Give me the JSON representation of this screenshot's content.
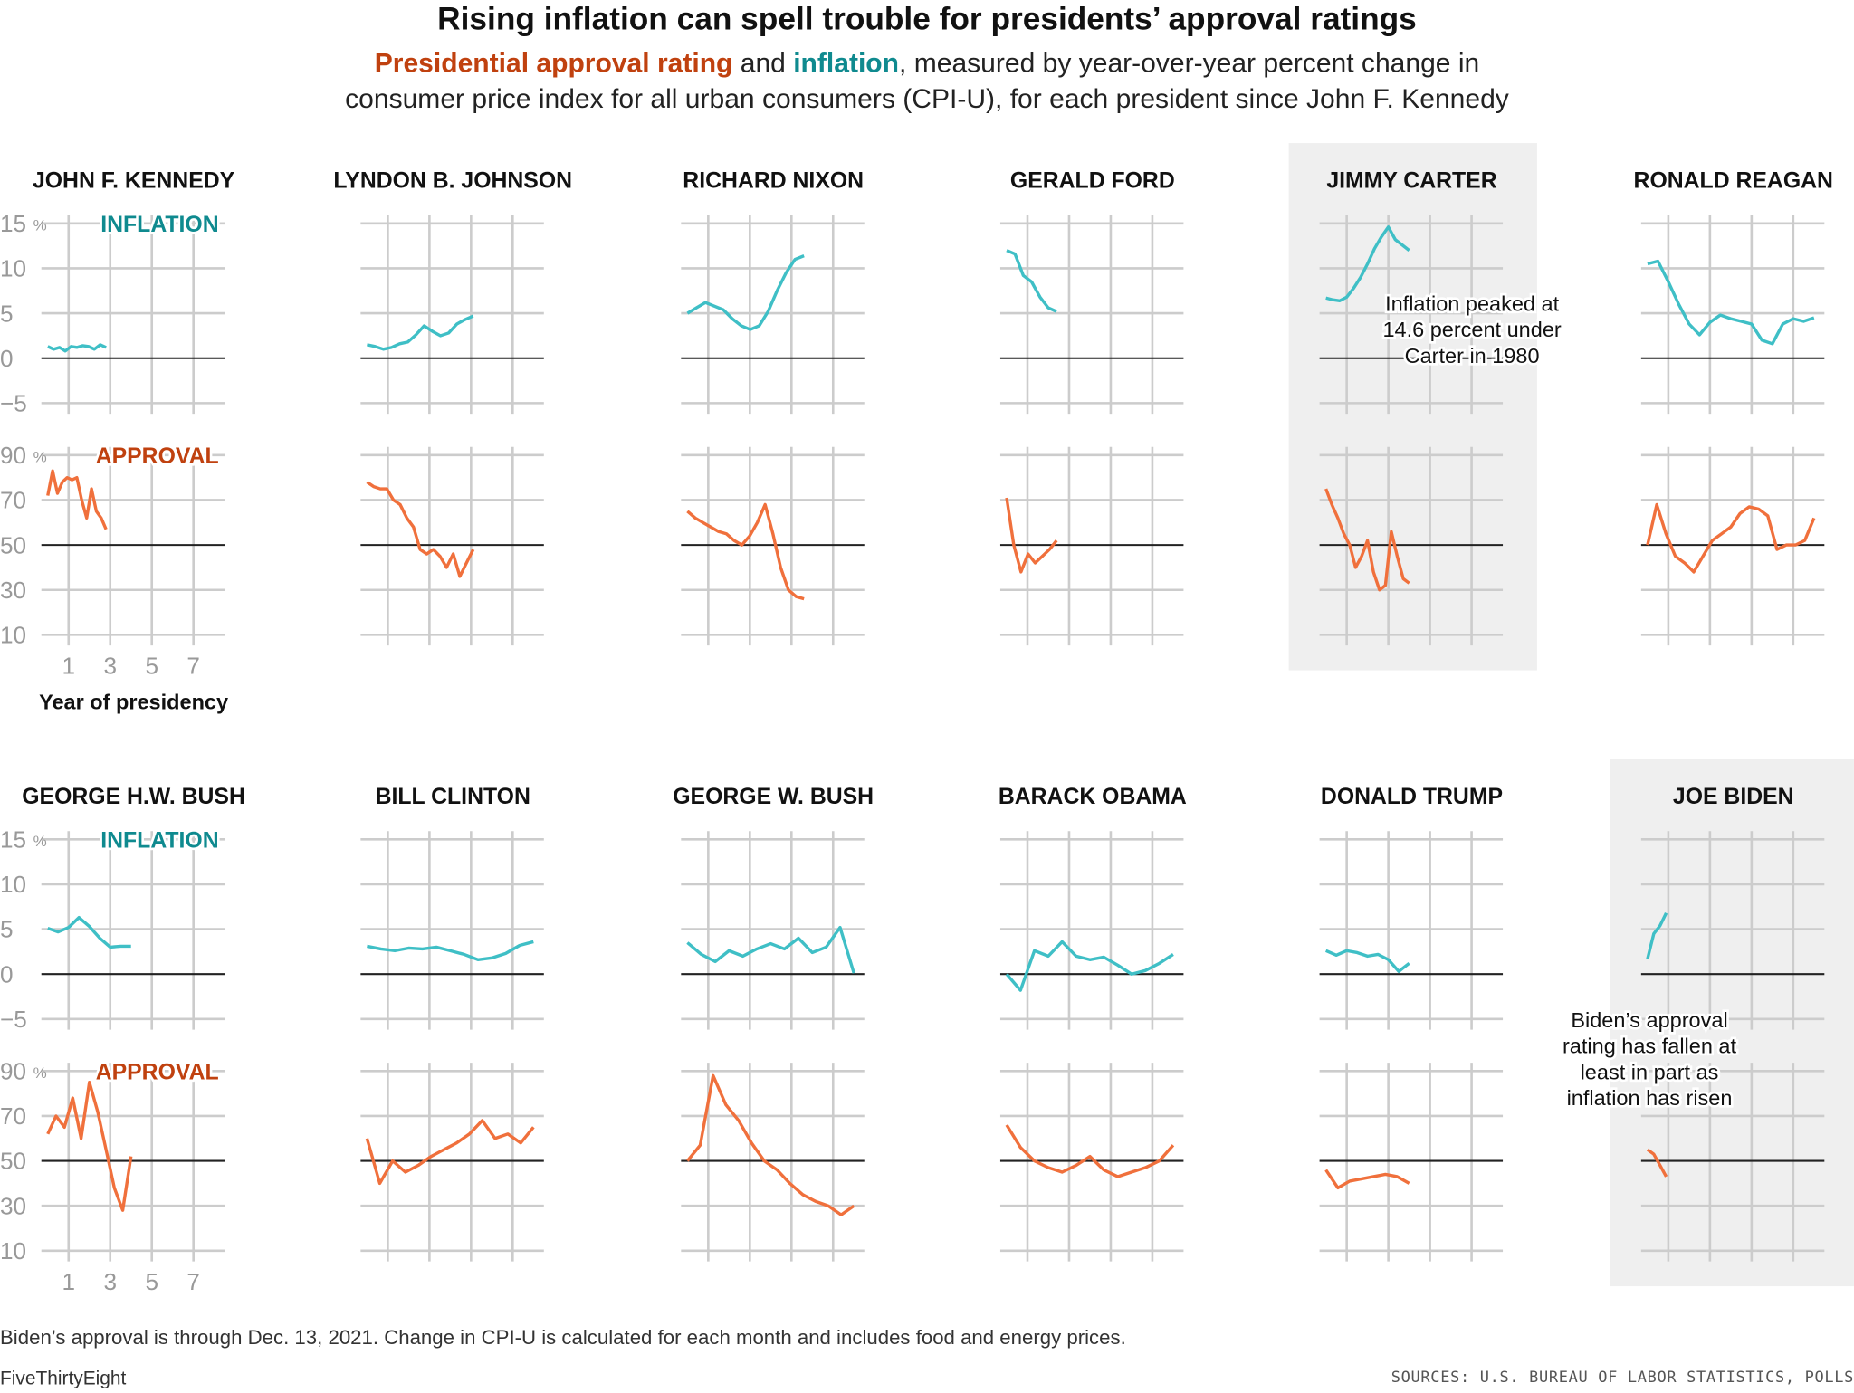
{
  "title": "Rising inflation can spell trouble for presidents’ approval ratings",
  "subtitle": {
    "approval_term": "Presidential approval rating",
    "and": " and ",
    "inflation_term": "inflation",
    "rest": ", measured by year-over-year percent change in consumer price index for all urban consumers (CPI-U), for each president since John F. Kennedy"
  },
  "colors": {
    "inflation": "#3fbfc6",
    "approval": "#f0703c",
    "inflation_label": "#0f8a8f",
    "approval_label": "#c0410f",
    "grid": "#cccccc",
    "highlight_bg": "#efefef"
  },
  "labels": {
    "inflation": "INFLATION",
    "approval": "APPROVAL",
    "xlabel": "Year of presidency"
  },
  "annotations": {
    "carter": [
      "Inflation peaked at",
      "14.6 percent under",
      "Carter in 1980"
    ],
    "biden": [
      "Biden’s approval",
      "rating has fallen at",
      "least in part as",
      "inflation has risen"
    ]
  },
  "footnote": "Biden’s approval is through Dec. 13, 2021. Change in CPI-U is calculated for each month and includes food and energy prices.",
  "brand": "FiveThirtyEight",
  "sources": "SOURCES: U.S. BUREAU OF LABOR STATISTICS, POLLS",
  "chart_data": {
    "type": "line",
    "small_multiples": true,
    "xlabel": "Year of presidency",
    "x_ticks": [
      1,
      3,
      5,
      7
    ],
    "inflation_axis": {
      "ticks": [
        15,
        10,
        5,
        0,
        -5
      ],
      "unit": "%",
      "ylim": [
        -5,
        15
      ],
      "baseline": 0
    },
    "approval_axis": {
      "ticks": [
        90,
        70,
        50,
        30,
        10
      ],
      "unit": "%",
      "ylim": [
        10,
        90
      ],
      "baseline": 50
    },
    "grid": true,
    "presidents": [
      {
        "name": "JOHN F. KENNEDY",
        "years": 2.8,
        "highlight": false,
        "inflation": [
          1.3,
          1.0,
          1.2,
          0.8,
          1.3,
          1.2,
          1.4,
          1.3,
          1.0,
          1.5,
          1.2
        ],
        "approval": [
          72,
          83,
          73,
          78,
          80,
          79,
          80,
          70,
          62,
          75,
          65,
          62,
          57
        ]
      },
      {
        "name": "LYNDON B. JOHNSON",
        "years": 5.1,
        "highlight": false,
        "inflation": [
          1.5,
          1.3,
          1.0,
          1.2,
          1.6,
          1.8,
          2.6,
          3.6,
          3.0,
          2.5,
          2.8,
          3.8,
          4.3,
          4.7
        ],
        "approval": [
          78,
          76,
          75,
          75,
          70,
          68,
          62,
          58,
          48,
          46,
          48,
          45,
          40,
          46,
          36,
          42,
          48
        ]
      },
      {
        "name": "RICHARD NIXON",
        "years": 5.6,
        "highlight": false,
        "inflation": [
          5.0,
          5.6,
          6.2,
          5.8,
          5.4,
          4.4,
          3.6,
          3.2,
          3.6,
          5.2,
          7.5,
          9.5,
          11.0,
          11.4
        ],
        "approval": [
          65,
          62,
          60,
          58,
          56,
          55,
          52,
          50,
          54,
          60,
          68,
          55,
          40,
          30,
          27,
          26
        ]
      },
      {
        "name": "GERALD FORD",
        "years": 2.4,
        "highlight": false,
        "inflation": [
          12.0,
          11.6,
          9.2,
          8.5,
          6.8,
          5.6,
          5.2
        ],
        "approval": [
          71,
          50,
          38,
          46,
          42,
          45,
          48,
          52
        ]
      },
      {
        "name": "JIMMY CARTER",
        "years": 4.0,
        "highlight": true,
        "inflation": [
          6.7,
          6.5,
          6.4,
          6.8,
          7.8,
          9.0,
          10.5,
          12.2,
          13.5,
          14.6,
          13.2,
          12.6,
          12.0
        ],
        "approval": [
          75,
          68,
          62,
          55,
          50,
          40,
          45,
          52,
          38,
          30,
          32,
          56,
          45,
          35,
          33
        ]
      },
      {
        "name": "RONALD REAGAN",
        "years": 8.0,
        "highlight": false,
        "inflation": [
          10.5,
          10.8,
          8.5,
          6.0,
          3.8,
          2.6,
          4.0,
          4.8,
          4.4,
          4.1,
          3.8,
          2.0,
          1.6,
          3.8,
          4.4,
          4.1,
          4.5
        ],
        "approval": [
          50,
          68,
          55,
          45,
          42,
          38,
          45,
          52,
          55,
          58,
          64,
          67,
          66,
          63,
          48,
          50,
          50,
          52,
          62
        ]
      },
      {
        "name": "GEORGE H.W. BUSH",
        "years": 4.0,
        "highlight": false,
        "inflation": [
          5.1,
          4.7,
          5.2,
          6.3,
          5.3,
          4.0,
          3.0,
          3.1,
          3.1
        ],
        "approval": [
          62,
          70,
          65,
          78,
          60,
          85,
          72,
          55,
          38,
          28,
          52
        ]
      },
      {
        "name": "BILL CLINTON",
        "years": 8.0,
        "highlight": false,
        "inflation": [
          3.1,
          2.8,
          2.6,
          2.9,
          2.8,
          3.0,
          2.6,
          2.2,
          1.6,
          1.8,
          2.3,
          3.2,
          3.6
        ],
        "approval": [
          60,
          40,
          50,
          45,
          48,
          52,
          55,
          58,
          62,
          68,
          60,
          62,
          58,
          65
        ]
      },
      {
        "name": "GEORGE W. BUSH",
        "years": 8.0,
        "highlight": false,
        "inflation": [
          3.5,
          2.2,
          1.4,
          2.6,
          2.0,
          2.8,
          3.4,
          2.8,
          4.0,
          2.4,
          3.0,
          5.2,
          0.1
        ],
        "approval": [
          50,
          57,
          88,
          75,
          68,
          58,
          50,
          46,
          40,
          35,
          32,
          30,
          26,
          30
        ]
      },
      {
        "name": "BARACK OBAMA",
        "years": 8.0,
        "highlight": false,
        "inflation": [
          0.0,
          -1.8,
          2.6,
          2.0,
          3.6,
          2.0,
          1.6,
          1.9,
          1.0,
          0.0,
          0.4,
          1.2,
          2.2
        ],
        "approval": [
          66,
          56,
          50,
          47,
          45,
          48,
          52,
          46,
          43,
          45,
          47,
          50,
          57
        ]
      },
      {
        "name": "DONALD TRUMP",
        "years": 4.0,
        "highlight": false,
        "inflation": [
          2.6,
          2.1,
          2.6,
          2.4,
          2.0,
          2.2,
          1.6,
          0.3,
          1.2
        ],
        "approval": [
          46,
          38,
          41,
          42,
          43,
          44,
          43,
          40
        ]
      },
      {
        "name": "JOE BIDEN",
        "years": 0.9,
        "highlight": true,
        "inflation": [
          1.7,
          4.5,
          5.4,
          6.8
        ],
        "approval": [
          55,
          53,
          48,
          43
        ]
      }
    ]
  }
}
